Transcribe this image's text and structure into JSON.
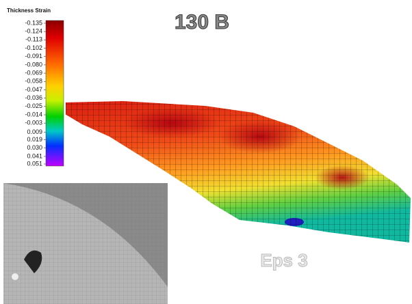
{
  "title": "130 B",
  "label": "Eps 3",
  "colorbar": {
    "title": "Thickness Strain",
    "ticks": [
      -0.135,
      -0.124,
      -0.113,
      -0.102,
      -0.091,
      {
        "value": -0.08,
        "label": "-0.080"
      },
      -0.069,
      -0.058,
      -0.047,
      -0.036,
      -0.025,
      -0.014,
      -0.003,
      0.009,
      0.019,
      {
        "value": 0.03,
        "label": "0.030"
      },
      0.041,
      0.051
    ]
  }
}
